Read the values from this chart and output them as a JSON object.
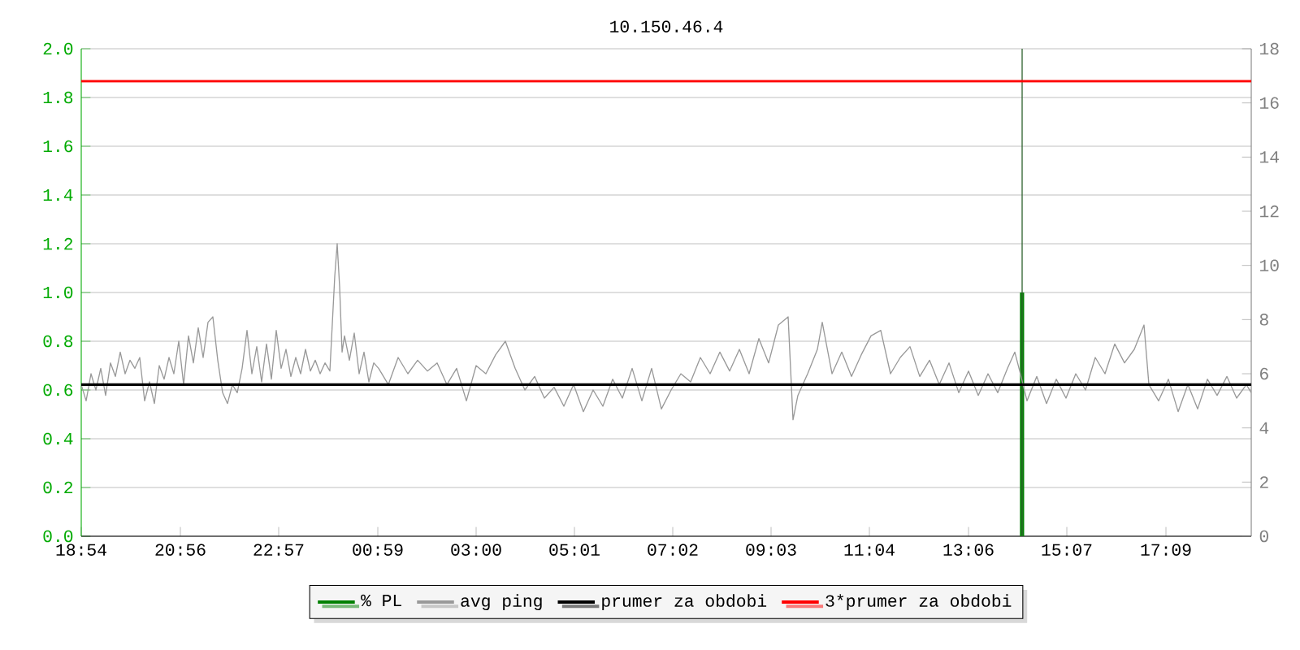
{
  "chart_data": {
    "type": "line",
    "title": "10.150.46.4",
    "xlim": [
      "2000-01-01T18:54",
      "2000-01-02T18:54"
    ],
    "xticks": [
      {
        "value": "2000-01-01T18:54",
        "label": "18:54"
      },
      {
        "value": "2000-01-01T20:56",
        "label": "20:56"
      },
      {
        "value": "2000-01-01T22:57",
        "label": "22:57"
      },
      {
        "value": "2000-01-02T00:59",
        "label": "00:59"
      },
      {
        "value": "2000-01-02T03:00",
        "label": "03:00"
      },
      {
        "value": "2000-01-02T05:01",
        "label": "05:01"
      },
      {
        "value": "2000-01-02T07:02",
        "label": "07:02"
      },
      {
        "value": "2000-01-02T09:03",
        "label": "09:03"
      },
      {
        "value": "2000-01-02T11:04",
        "label": "11:04"
      },
      {
        "value": "2000-01-02T13:06",
        "label": "13:06"
      },
      {
        "value": "2000-01-02T15:07",
        "label": "15:07"
      },
      {
        "value": "2000-01-02T17:09",
        "label": "17:09"
      }
    ],
    "ylim": [
      0,
      2
    ],
    "yticks": [
      {
        "value": 0,
        "label": "0.0"
      },
      {
        "value": 0.2,
        "label": "0.2"
      },
      {
        "value": 0.4,
        "label": "0.4"
      },
      {
        "value": 0.6,
        "label": "0.6"
      },
      {
        "value": 0.8,
        "label": "0.8"
      },
      {
        "value": 1,
        "label": "1.0"
      },
      {
        "value": 1.2,
        "label": "1.2"
      },
      {
        "value": 1.4,
        "label": "1.4"
      },
      {
        "value": 1.6,
        "label": "1.6"
      },
      {
        "value": 1.8,
        "label": "1.8"
      },
      {
        "value": 2,
        "label": "2.0"
      }
    ],
    "y2lim": [
      0,
      18
    ],
    "y2ticks": [
      0,
      2,
      4,
      6,
      8,
      10,
      12,
      14,
      16,
      18
    ],
    "grid": "y",
    "legend": "bottom",
    "series": [
      {
        "name": "% PL",
        "type": "bar",
        "color": "#008000",
        "x": [
          "2000-01-02T14:12"
        ],
        "values": [
          1.0
        ]
      },
      {
        "name": "avg ping",
        "axis": "y2",
        "color": "#999999",
        "x": [
          "2000-01-01T18:54",
          "2000-01-01T19:00",
          "2000-01-01T19:06",
          "2000-01-01T19:12",
          "2000-01-01T19:18",
          "2000-01-01T19:24",
          "2000-01-01T19:30",
          "2000-01-01T19:36",
          "2000-01-01T19:42",
          "2000-01-01T19:48",
          "2000-01-01T19:54",
          "2000-01-01T20:00",
          "2000-01-01T20:06",
          "2000-01-01T20:12",
          "2000-01-01T20:18",
          "2000-01-01T20:24",
          "2000-01-01T20:30",
          "2000-01-01T20:36",
          "2000-01-01T20:42",
          "2000-01-01T20:48",
          "2000-01-01T20:54",
          "2000-01-01T21:00",
          "2000-01-01T21:06",
          "2000-01-01T21:12",
          "2000-01-01T21:18",
          "2000-01-01T21:24",
          "2000-01-01T21:30",
          "2000-01-01T21:36",
          "2000-01-01T21:42",
          "2000-01-01T21:48",
          "2000-01-01T21:54",
          "2000-01-01T22:00",
          "2000-01-01T22:06",
          "2000-01-01T22:12",
          "2000-01-01T22:18",
          "2000-01-01T22:24",
          "2000-01-01T22:30",
          "2000-01-01T22:36",
          "2000-01-01T22:42",
          "2000-01-01T22:48",
          "2000-01-01T22:54",
          "2000-01-01T23:00",
          "2000-01-01T23:06",
          "2000-01-01T23:12",
          "2000-01-01T23:18",
          "2000-01-01T23:24",
          "2000-01-01T23:30",
          "2000-01-01T23:36",
          "2000-01-01T23:42",
          "2000-01-01T23:48",
          "2000-01-01T23:54",
          "2000-01-02T00:00",
          "2000-01-02T00:06",
          "2000-01-02T00:09",
          "2000-01-02T00:12",
          "2000-01-02T00:15",
          "2000-01-02T00:18",
          "2000-01-02T00:24",
          "2000-01-02T00:30",
          "2000-01-02T00:36",
          "2000-01-02T00:42",
          "2000-01-02T00:48",
          "2000-01-02T00:54",
          "2000-01-02T01:00",
          "2000-01-02T01:12",
          "2000-01-02T01:24",
          "2000-01-02T01:36",
          "2000-01-02T01:48",
          "2000-01-02T02:00",
          "2000-01-02T02:12",
          "2000-01-02T02:24",
          "2000-01-02T02:36",
          "2000-01-02T02:48",
          "2000-01-02T03:00",
          "2000-01-02T03:12",
          "2000-01-02T03:24",
          "2000-01-02T03:36",
          "2000-01-02T03:48",
          "2000-01-02T04:00",
          "2000-01-02T04:12",
          "2000-01-02T04:24",
          "2000-01-02T04:36",
          "2000-01-02T04:48",
          "2000-01-02T05:00",
          "2000-01-02T05:12",
          "2000-01-02T05:24",
          "2000-01-02T05:36",
          "2000-01-02T05:48",
          "2000-01-02T06:00",
          "2000-01-02T06:12",
          "2000-01-02T06:24",
          "2000-01-02T06:36",
          "2000-01-02T06:48",
          "2000-01-02T07:00",
          "2000-01-02T07:12",
          "2000-01-02T07:24",
          "2000-01-02T07:36",
          "2000-01-02T07:48",
          "2000-01-02T08:00",
          "2000-01-02T08:12",
          "2000-01-02T08:24",
          "2000-01-02T08:36",
          "2000-01-02T08:48",
          "2000-01-02T09:00",
          "2000-01-02T09:12",
          "2000-01-02T09:24",
          "2000-01-02T09:30",
          "2000-01-02T09:36",
          "2000-01-02T09:48",
          "2000-01-02T10:00",
          "2000-01-02T10:06",
          "2000-01-02T10:18",
          "2000-01-02T10:30",
          "2000-01-02T10:42",
          "2000-01-02T10:54",
          "2000-01-02T11:06",
          "2000-01-02T11:18",
          "2000-01-02T11:30",
          "2000-01-02T11:42",
          "2000-01-02T11:54",
          "2000-01-02T12:06",
          "2000-01-02T12:18",
          "2000-01-02T12:30",
          "2000-01-02T12:42",
          "2000-01-02T12:54",
          "2000-01-02T13:06",
          "2000-01-02T13:18",
          "2000-01-02T13:30",
          "2000-01-02T13:42",
          "2000-01-02T13:54",
          "2000-01-02T14:03",
          "2000-01-02T14:09",
          "2000-01-02T14:18",
          "2000-01-02T14:30",
          "2000-01-02T14:42",
          "2000-01-02T14:54",
          "2000-01-02T15:06",
          "2000-01-02T15:18",
          "2000-01-02T15:30",
          "2000-01-02T15:42",
          "2000-01-02T15:54",
          "2000-01-02T16:06",
          "2000-01-02T16:18",
          "2000-01-02T16:30",
          "2000-01-02T16:42",
          "2000-01-02T16:48",
          "2000-01-02T17:00",
          "2000-01-02T17:12",
          "2000-01-02T17:24",
          "2000-01-02T17:36",
          "2000-01-02T17:48",
          "2000-01-02T18:00",
          "2000-01-02T18:12",
          "2000-01-02T18:24",
          "2000-01-02T18:36",
          "2000-01-02T18:48",
          "2000-01-02T18:54"
        ],
        "values": [
          5.6,
          5.0,
          6.0,
          5.4,
          6.2,
          5.2,
          6.4,
          5.9,
          6.8,
          6.0,
          6.5,
          6.2,
          6.6,
          5.0,
          5.7,
          4.9,
          6.3,
          5.8,
          6.6,
          6.0,
          7.2,
          5.6,
          7.4,
          6.4,
          7.7,
          6.6,
          7.9,
          8.1,
          6.5,
          5.3,
          4.9,
          5.6,
          5.3,
          6.2,
          7.6,
          6.0,
          7.0,
          5.7,
          7.1,
          5.8,
          7.6,
          6.2,
          6.9,
          5.9,
          6.6,
          6.0,
          6.9,
          6.1,
          6.5,
          6.0,
          6.4,
          6.1,
          9.6,
          10.8,
          9.2,
          6.8,
          7.4,
          6.5,
          7.5,
          6.0,
          6.8,
          5.7,
          6.4,
          6.2,
          5.6,
          6.6,
          6.0,
          6.5,
          6.1,
          6.4,
          5.6,
          6.2,
          5.0,
          6.3,
          6.0,
          6.7,
          7.2,
          6.2,
          5.4,
          5.9,
          5.1,
          5.5,
          4.8,
          5.6,
          4.6,
          5.4,
          4.8,
          5.8,
          5.1,
          6.2,
          5.0,
          6.2,
          4.7,
          5.4,
          6.0,
          5.7,
          6.6,
          6.0,
          6.8,
          6.1,
          6.9,
          6.0,
          7.3,
          6.4,
          7.8,
          8.1,
          4.3,
          5.2,
          6.0,
          6.9,
          7.9,
          6.0,
          6.8,
          5.9,
          6.7,
          7.4,
          7.6,
          6.0,
          6.6,
          7.0,
          5.9,
          6.5,
          5.6,
          6.4,
          5.3,
          6.1,
          5.2,
          6.0,
          5.3,
          6.2,
          6.8,
          6.1,
          5.0,
          5.9,
          4.9,
          5.8,
          5.1,
          6.0,
          5.4,
          6.6,
          6.0,
          7.1,
          6.4,
          6.9,
          7.8,
          5.6,
          5.0,
          5.8,
          4.6,
          5.6,
          4.7,
          5.8,
          5.2,
          5.9,
          5.1,
          5.6,
          5.3
        ]
      },
      {
        "name": "prumer za obdobi",
        "axis": "y2",
        "color": "#000000",
        "x": [
          "2000-01-01T18:54",
          "2000-01-02T18:54"
        ],
        "values": [
          5.6,
          5.6
        ]
      },
      {
        "name": "3*prumer za obdobi",
        "axis": "y2",
        "color": "#ff0000",
        "x": [
          "2000-01-01T18:54",
          "2000-01-02T18:54"
        ],
        "values": [
          16.8,
          16.8
        ]
      }
    ],
    "ref_lines": [
      {
        "axis": "x",
        "value": "2000-01-02T14:12",
        "color": "#336633"
      }
    ]
  }
}
